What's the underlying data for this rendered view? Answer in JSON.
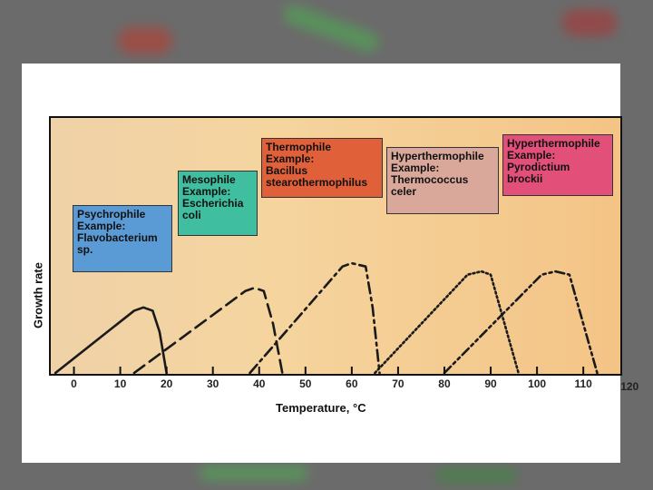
{
  "colors": {
    "psychrophile": "#5b9bd5",
    "mesophile": "#3fbf9f",
    "thermophile": "#e0603a",
    "hyperthermophile_1": "#d9a89a",
    "hyperthermophile_2": "#e2507a"
  },
  "chart_data": {
    "type": "line",
    "xlabel": "Temperature, °C",
    "ylabel": "Growth rate",
    "x_ticks": [
      "0",
      "10",
      "20",
      "30",
      "40",
      "50",
      "60",
      "70",
      "80",
      "90",
      "100",
      "110",
      "120"
    ],
    "xlim": [
      -5,
      118
    ],
    "ylim": [
      0,
      1
    ],
    "grid": false,
    "series": [
      {
        "name": "Psychrophile",
        "line_style": "solid",
        "points": [
          [
            -4,
            0
          ],
          [
            13,
            0.38
          ],
          [
            15,
            0.4
          ],
          [
            17,
            0.38
          ],
          [
            18.5,
            0.25
          ],
          [
            20,
            0
          ]
        ]
      },
      {
        "name": "Mesophile",
        "line_style": "dashed",
        "points": [
          [
            13,
            0
          ],
          [
            37,
            0.5
          ],
          [
            39,
            0.52
          ],
          [
            41,
            0.5
          ],
          [
            43,
            0.3
          ],
          [
            45,
            0
          ]
        ]
      },
      {
        "name": "Thermophile",
        "line_style": "dash-dot",
        "points": [
          [
            38,
            0
          ],
          [
            58,
            0.65
          ],
          [
            60,
            0.67
          ],
          [
            63,
            0.65
          ],
          [
            64.5,
            0.4
          ],
          [
            66,
            0
          ]
        ]
      },
      {
        "name": "Hyperthermophile",
        "line_style": "dotted",
        "points": [
          [
            65,
            0
          ],
          [
            85,
            0.6
          ],
          [
            88,
            0.62
          ],
          [
            90,
            0.6
          ],
          [
            93,
            0.3
          ],
          [
            96,
            0
          ]
        ]
      },
      {
        "name": "Hyperthermophile",
        "line_style": "dash-dot-dot",
        "points": [
          [
            80,
            0
          ],
          [
            101,
            0.6
          ],
          [
            104,
            0.62
          ],
          [
            107,
            0.6
          ],
          [
            110,
            0.3
          ],
          [
            113,
            0
          ]
        ]
      }
    ],
    "annotations": [
      {
        "key": "psychrophile",
        "lines": [
          "Psychrophile",
          "Example:",
          "Flavobacterium",
          "sp."
        ]
      },
      {
        "key": "mesophile",
        "lines": [
          "Mesophile",
          "Example:",
          "Escherichia",
          "coli"
        ]
      },
      {
        "key": "thermophile",
        "lines": [
          "Thermophile",
          "Example:",
          "Bacillus",
          "stearothermophilus"
        ]
      },
      {
        "key": "hyperthermophile_1",
        "lines": [
          "Hyperthermophile",
          "Example:",
          "Thermococcus",
          "celer"
        ]
      },
      {
        "key": "hyperthermophile_2",
        "lines": [
          "Hyperthermophile",
          "Example:",
          "Pyrodictium",
          "brockii"
        ]
      }
    ]
  }
}
